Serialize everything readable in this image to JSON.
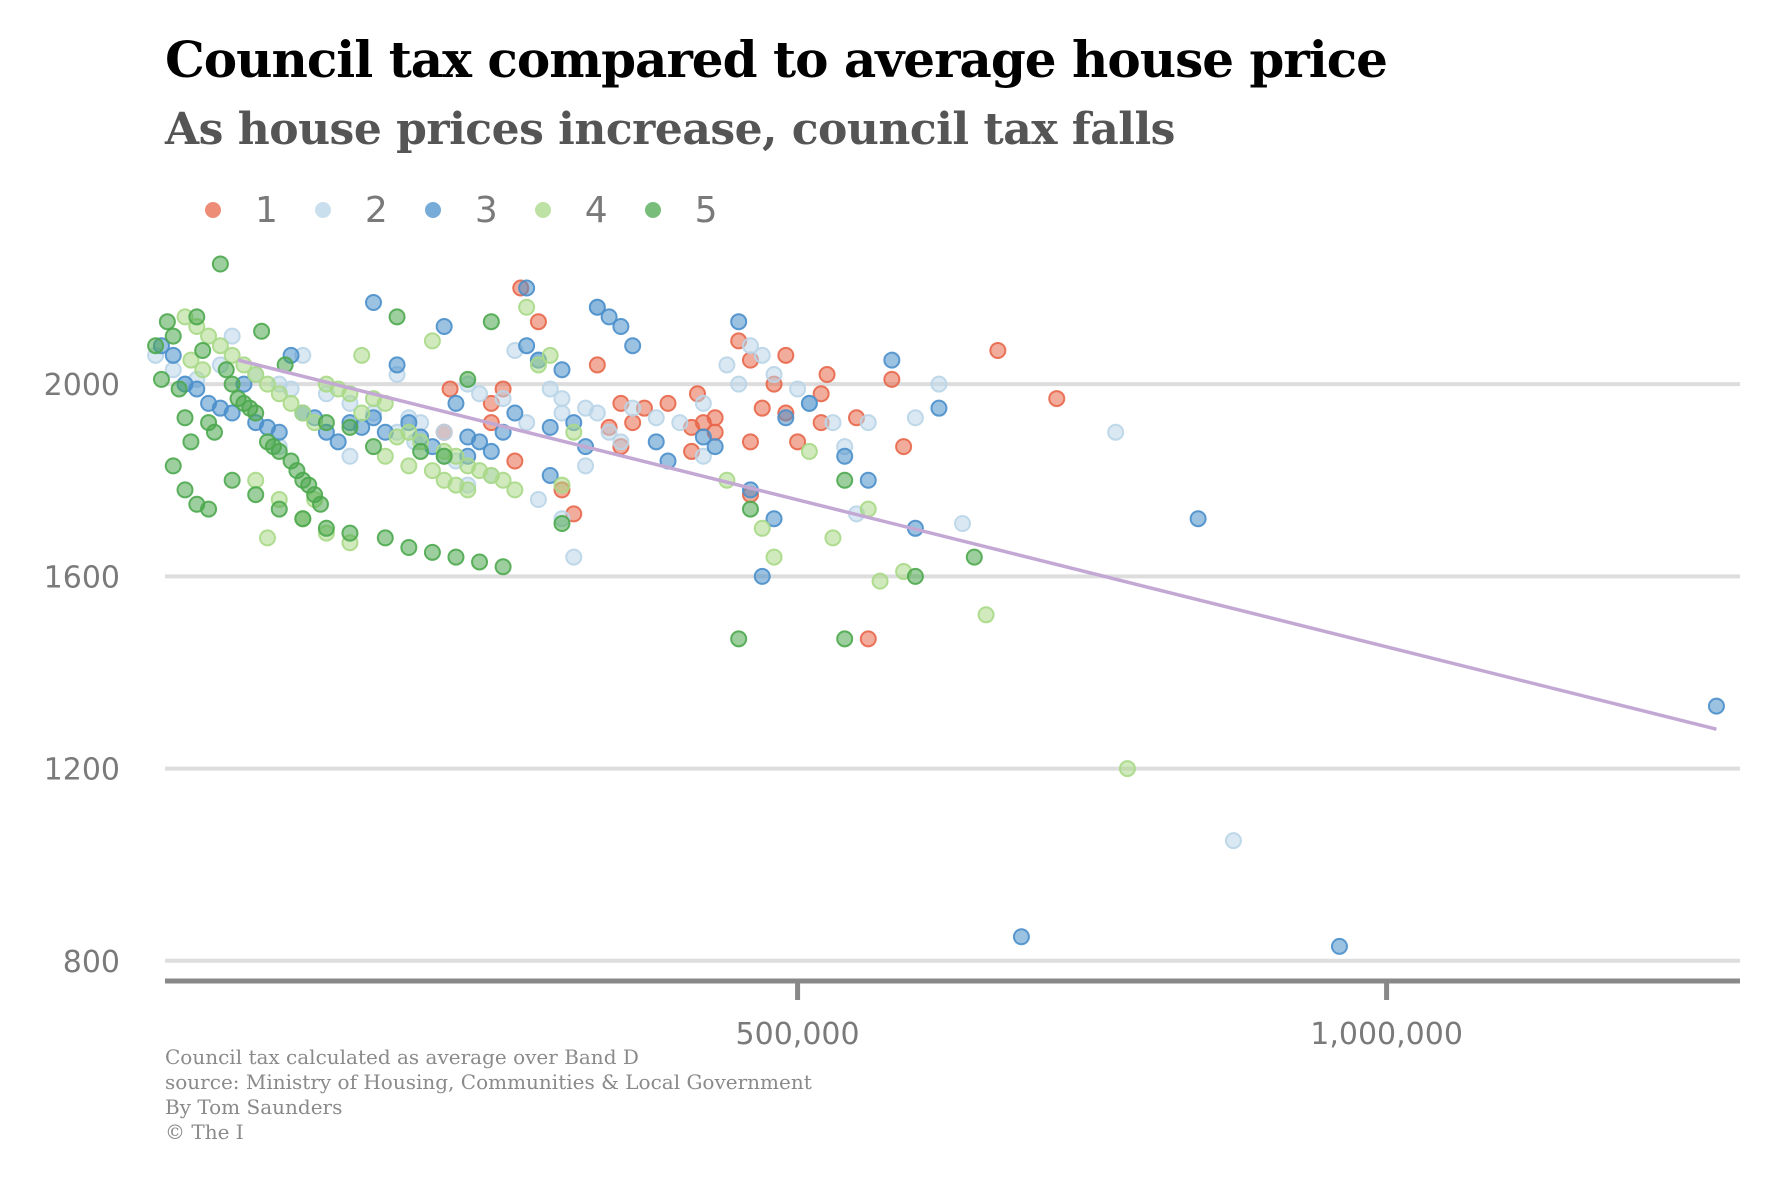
{
  "title": "Council tax compared to average house price",
  "subtitle": "As house prices increase, council tax falls",
  "footer": {
    "note": "Council tax calculated as average over Band D",
    "source": "source: Ministry of Housing, Communities & Local Government",
    "byline": "By Tom Saunders",
    "copyright": "© The I"
  },
  "chart_data": {
    "type": "scatter",
    "title": "Council tax compared to average house price",
    "subtitle": "As house prices increase, council tax falls",
    "xlabel": "",
    "ylabel": "",
    "xlim": [
      -37000,
      1300000
    ],
    "ylim": [
      760,
      2300
    ],
    "x_ticks": [
      500000,
      1000000
    ],
    "x_tick_labels": [
      "500,000",
      "1,000,000"
    ],
    "y_ticks": [
      800,
      1200,
      1600,
      2000
    ],
    "y_tick_labels": [
      "800",
      "1200",
      "1600",
      "2000"
    ],
    "grid": "horizontal",
    "legend_position": "top-left",
    "trend_line": {
      "x": [
        25000,
        1280000
      ],
      "y": [
        2050,
        1282
      ],
      "color": "#c3a8d4"
    },
    "series": [
      {
        "name": "1",
        "color": "#e8674a",
        "points": [
          [
            265,
            2200
          ],
          [
            450,
            2090
          ],
          [
            490,
            2060
          ],
          [
            670,
            2070
          ],
          [
            460,
            2050
          ],
          [
            525,
            2020
          ],
          [
            580,
            2010
          ],
          [
            480,
            2000
          ],
          [
            520,
            1980
          ],
          [
            415,
            1980
          ],
          [
            470,
            1950
          ],
          [
            490,
            1940
          ],
          [
            520,
            1920
          ],
          [
            420,
            1920
          ],
          [
            360,
            1920
          ],
          [
            430,
            1900
          ],
          [
            500,
            1880
          ],
          [
            590,
            1870
          ],
          [
            720,
            1970
          ],
          [
            550,
            1930
          ],
          [
            280,
            2130
          ],
          [
            330,
            2040
          ],
          [
            240,
            1960
          ],
          [
            205,
            1990
          ],
          [
            350,
            1870
          ],
          [
            300,
            1780
          ],
          [
            460,
            1880
          ],
          [
            340,
            1910
          ],
          [
            410,
            1910
          ],
          [
            370,
            1950
          ],
          [
            350,
            1960
          ],
          [
            390,
            1960
          ],
          [
            430,
            1930
          ],
          [
            200,
            1900
          ],
          [
            260,
            1840
          ],
          [
            240,
            1920
          ],
          [
            250,
            1990
          ],
          [
            410,
            1860
          ],
          [
            460,
            1770
          ],
          [
            310,
            1730
          ],
          [
            560,
            1470
          ]
        ]
      },
      {
        "name": "2",
        "color": "#b9d5e8",
        "points": [
          [
            -45,
            2060
          ],
          [
            -30,
            2030
          ],
          [
            -20,
            2000
          ],
          [
            -10,
            2010
          ],
          [
            10,
            2040
          ],
          [
            20,
            2100
          ],
          [
            40,
            2020
          ],
          [
            60,
            2000
          ],
          [
            70,
            1990
          ],
          [
            80,
            2060
          ],
          [
            100,
            1980
          ],
          [
            120,
            1960
          ],
          [
            140,
            1940
          ],
          [
            160,
            2020
          ],
          [
            170,
            1930
          ],
          [
            180,
            1920
          ],
          [
            200,
            1900
          ],
          [
            220,
            2000
          ],
          [
            230,
            1980
          ],
          [
            250,
            1970
          ],
          [
            260,
            2070
          ],
          [
            270,
            1920
          ],
          [
            280,
            2050
          ],
          [
            290,
            1990
          ],
          [
            300,
            1970
          ],
          [
            320,
            1950
          ],
          [
            330,
            1940
          ],
          [
            340,
            1900
          ],
          [
            350,
            1880
          ],
          [
            360,
            1950
          ],
          [
            380,
            1930
          ],
          [
            400,
            1920
          ],
          [
            420,
            1960
          ],
          [
            440,
            2040
          ],
          [
            450,
            2000
          ],
          [
            460,
            2080
          ],
          [
            480,
            2020
          ],
          [
            500,
            1990
          ],
          [
            510,
            1960
          ],
          [
            530,
            1920
          ],
          [
            540,
            1870
          ],
          [
            160,
            1900
          ],
          [
            175,
            1880
          ],
          [
            200,
            1850
          ],
          [
            210,
            1840
          ],
          [
            240,
            1810
          ],
          [
            280,
            1760
          ],
          [
            300,
            1720
          ],
          [
            310,
            1640
          ],
          [
            320,
            1830
          ],
          [
            420,
            1850
          ],
          [
            550,
            1730
          ],
          [
            330,
            2160
          ],
          [
            470,
            2060
          ],
          [
            60,
            1870
          ],
          [
            120,
            1850
          ],
          [
            220,
            1790
          ],
          [
            300,
            1940
          ],
          [
            560,
            1920
          ],
          [
            600,
            1930
          ],
          [
            620,
            2000
          ],
          [
            640,
            1710
          ],
          [
            770,
            1900
          ],
          [
            870,
            1050
          ]
        ]
      },
      {
        "name": "3",
        "color": "#4a8fcb",
        "points": [
          [
            -40,
            2080
          ],
          [
            -30,
            2060
          ],
          [
            -20,
            2000
          ],
          [
            -10,
            1990
          ],
          [
            0,
            1960
          ],
          [
            10,
            1950
          ],
          [
            20,
            1940
          ],
          [
            30,
            2000
          ],
          [
            40,
            1920
          ],
          [
            50,
            1910
          ],
          [
            60,
            1900
          ],
          [
            70,
            2060
          ],
          [
            80,
            1940
          ],
          [
            90,
            1930
          ],
          [
            100,
            1900
          ],
          [
            110,
            1880
          ],
          [
            120,
            1920
          ],
          [
            130,
            1910
          ],
          [
            140,
            1930
          ],
          [
            150,
            1900
          ],
          [
            160,
            2040
          ],
          [
            170,
            1920
          ],
          [
            180,
            1890
          ],
          [
            190,
            1870
          ],
          [
            200,
            2120
          ],
          [
            210,
            1960
          ],
          [
            220,
            1890
          ],
          [
            230,
            1880
          ],
          [
            240,
            1860
          ],
          [
            250,
            1900
          ],
          [
            260,
            1940
          ],
          [
            270,
            2080
          ],
          [
            280,
            2050
          ],
          [
            290,
            1910
          ],
          [
            300,
            2030
          ],
          [
            310,
            1920
          ],
          [
            330,
            2160
          ],
          [
            340,
            2140
          ],
          [
            350,
            2120
          ],
          [
            360,
            2080
          ],
          [
            380,
            1880
          ],
          [
            390,
            1840
          ],
          [
            420,
            1890
          ],
          [
            430,
            1870
          ],
          [
            450,
            2130
          ],
          [
            460,
            1780
          ],
          [
            470,
            1600
          ],
          [
            480,
            1720
          ],
          [
            490,
            1930
          ],
          [
            510,
            1960
          ],
          [
            540,
            1850
          ],
          [
            560,
            1800
          ],
          [
            580,
            2050
          ],
          [
            600,
            1700
          ],
          [
            620,
            1950
          ],
          [
            270,
            2200
          ],
          [
            140,
            2170
          ],
          [
            220,
            1850
          ],
          [
            290,
            1810
          ],
          [
            320,
            1870
          ],
          [
            840,
            1720
          ],
          [
            690,
            850
          ],
          [
            960,
            830
          ],
          [
            1280,
            1330
          ]
        ]
      },
      {
        "name": "4",
        "color": "#a9d987",
        "points": [
          [
            -20,
            2140
          ],
          [
            -10,
            2120
          ],
          [
            0,
            2100
          ],
          [
            10,
            2080
          ],
          [
            20,
            2060
          ],
          [
            30,
            2040
          ],
          [
            40,
            2020
          ],
          [
            50,
            2000
          ],
          [
            60,
            1980
          ],
          [
            70,
            1960
          ],
          [
            80,
            1940
          ],
          [
            90,
            1920
          ],
          [
            100,
            2000
          ],
          [
            110,
            1990
          ],
          [
            120,
            1980
          ],
          [
            130,
            2060
          ],
          [
            140,
            1970
          ],
          [
            150,
            1960
          ],
          [
            160,
            1890
          ],
          [
            170,
            1900
          ],
          [
            180,
            1880
          ],
          [
            190,
            2090
          ],
          [
            200,
            1860
          ],
          [
            210,
            1850
          ],
          [
            220,
            1830
          ],
          [
            230,
            1820
          ],
          [
            240,
            1810
          ],
          [
            250,
            1800
          ],
          [
            260,
            1780
          ],
          [
            270,
            2160
          ],
          [
            280,
            2040
          ],
          [
            290,
            2060
          ],
          [
            300,
            1790
          ],
          [
            310,
            1900
          ],
          [
            440,
            1800
          ],
          [
            470,
            1700
          ],
          [
            480,
            1640
          ],
          [
            510,
            1860
          ],
          [
            530,
            1680
          ],
          [
            560,
            1740
          ],
          [
            570,
            1590
          ],
          [
            590,
            1610
          ],
          [
            660,
            1520
          ],
          [
            780,
            1200
          ],
          [
            40,
            1800
          ],
          [
            60,
            1760
          ],
          [
            80,
            1720
          ],
          [
            100,
            1690
          ],
          [
            120,
            1670
          ],
          [
            150,
            1850
          ],
          [
            170,
            1830
          ],
          [
            190,
            1820
          ],
          [
            200,
            1800
          ],
          [
            210,
            1790
          ],
          [
            220,
            1780
          ],
          [
            130,
            1940
          ],
          [
            90,
            1760
          ],
          [
            50,
            1680
          ],
          [
            -15,
            2050
          ],
          [
            -5,
            2030
          ]
        ]
      },
      {
        "name": "5",
        "color": "#4ca84e",
        "points": [
          [
            -45,
            2080
          ],
          [
            -40,
            2010
          ],
          [
            -35,
            2130
          ],
          [
            -30,
            2100
          ],
          [
            -25,
            1990
          ],
          [
            -20,
            1930
          ],
          [
            -15,
            1880
          ],
          [
            -10,
            2140
          ],
          [
            -5,
            2070
          ],
          [
            0,
            1920
          ],
          [
            5,
            1900
          ],
          [
            10,
            2250
          ],
          [
            15,
            2030
          ],
          [
            20,
            2000
          ],
          [
            25,
            1970
          ],
          [
            30,
            1960
          ],
          [
            35,
            1950
          ],
          [
            40,
            1940
          ],
          [
            45,
            2110
          ],
          [
            50,
            1880
          ],
          [
            55,
            1870
          ],
          [
            60,
            1860
          ],
          [
            65,
            2040
          ],
          [
            70,
            1840
          ],
          [
            75,
            1820
          ],
          [
            80,
            1800
          ],
          [
            85,
            1790
          ],
          [
            90,
            1770
          ],
          [
            95,
            1750
          ],
          [
            100,
            1920
          ],
          [
            120,
            1910
          ],
          [
            140,
            1870
          ],
          [
            160,
            2140
          ],
          [
            180,
            1860
          ],
          [
            200,
            1850
          ],
          [
            220,
            2010
          ],
          [
            240,
            2130
          ],
          [
            -30,
            1830
          ],
          [
            -20,
            1780
          ],
          [
            -10,
            1750
          ],
          [
            0,
            1740
          ],
          [
            20,
            1800
          ],
          [
            40,
            1770
          ],
          [
            60,
            1740
          ],
          [
            80,
            1720
          ],
          [
            100,
            1700
          ],
          [
            120,
            1690
          ],
          [
            150,
            1680
          ],
          [
            170,
            1660
          ],
          [
            190,
            1650
          ],
          [
            210,
            1640
          ],
          [
            230,
            1630
          ],
          [
            250,
            1620
          ],
          [
            300,
            1710
          ],
          [
            540,
            1800
          ],
          [
            600,
            1600
          ],
          [
            650,
            1640
          ],
          [
            540,
            1470
          ],
          [
            450,
            1470
          ],
          [
            460,
            1740
          ]
        ]
      }
    ]
  }
}
